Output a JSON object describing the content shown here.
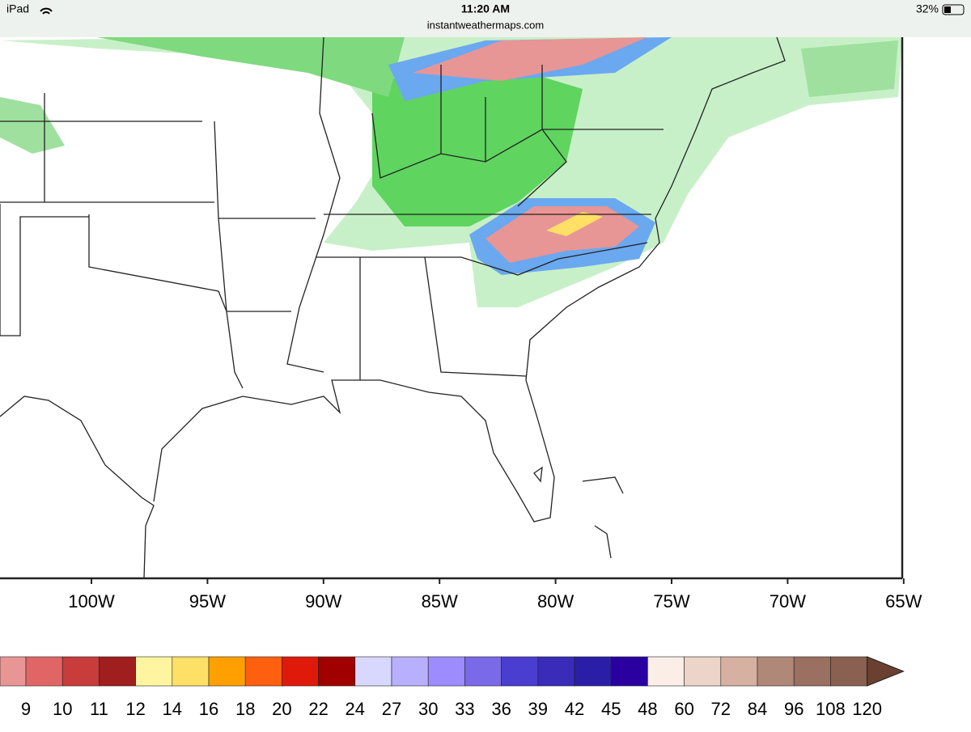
{
  "status_bar": {
    "device": "iPad",
    "time": "11:20 AM",
    "url": "instantweathermaps.com",
    "battery": "32%"
  },
  "map": {
    "lon_labels": [
      "100W",
      "95W",
      "90W",
      "85W",
      "80W",
      "75W",
      "70W",
      "65W"
    ]
  },
  "colorbar": {
    "labels": [
      "9",
      "10",
      "11",
      "12",
      "14",
      "16",
      "18",
      "20",
      "22",
      "24",
      "27",
      "30",
      "33",
      "36",
      "39",
      "42",
      "45",
      "48",
      "60",
      "72",
      "84",
      "96",
      "108",
      "120"
    ],
    "colors": [
      "#e89595",
      "#e06666",
      "#c83c3c",
      "#a01e1e",
      "#fff5a0",
      "#ffe066",
      "#ffa000",
      "#ff6010",
      "#e01a0a",
      "#a00000",
      "#d8d8ff",
      "#b8b0ff",
      "#9c8cff",
      "#7a6ae8",
      "#4a3ed0",
      "#3a2cb8",
      "#2a1ea8",
      "#2a00a0",
      "#fbeee6",
      "#ecd4c8",
      "#d6b0a0",
      "#b08878",
      "#9a7060",
      "#8a6050",
      "#6a4030"
    ]
  }
}
